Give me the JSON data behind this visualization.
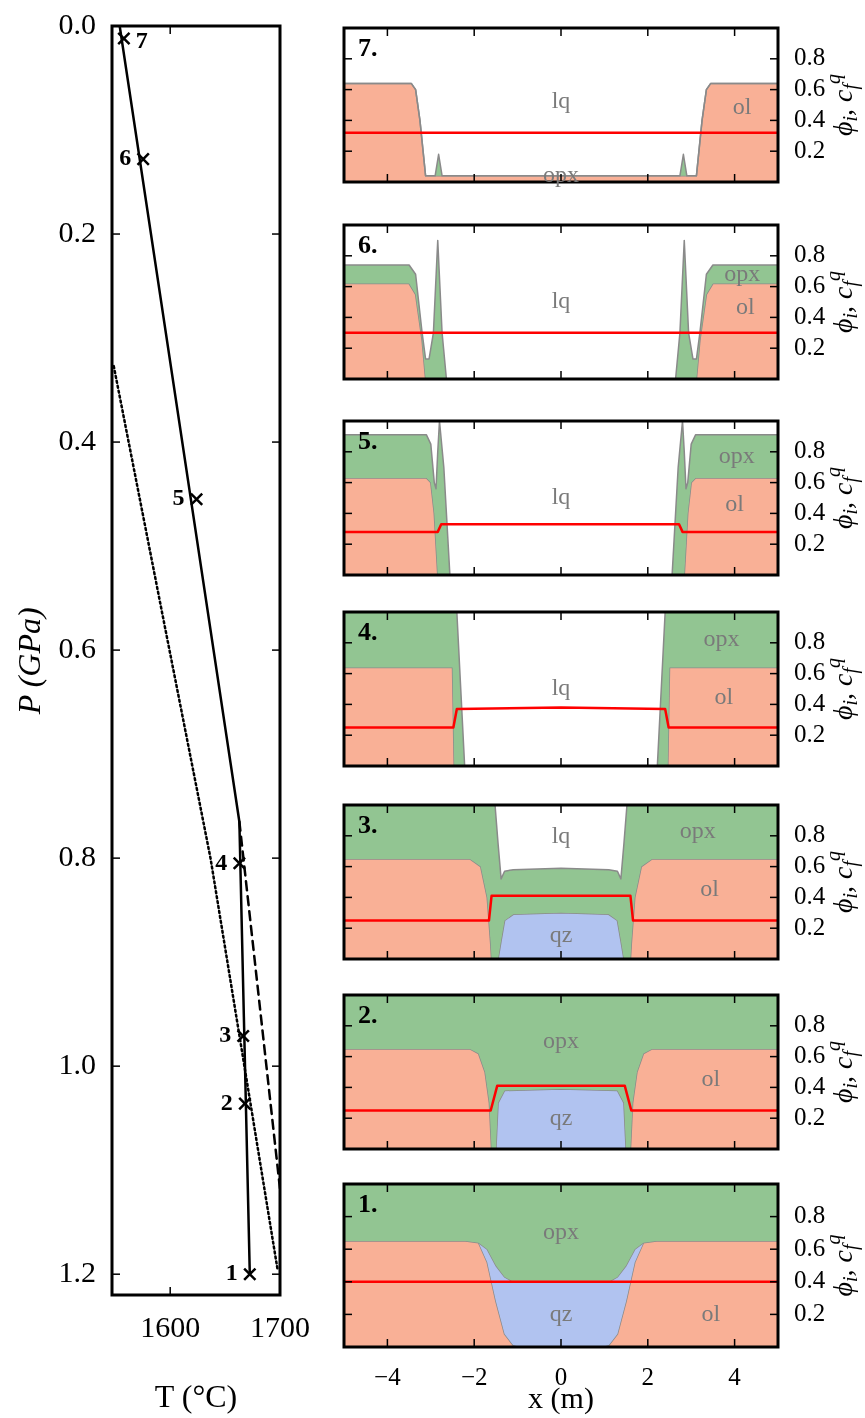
{
  "chart_data": [
    {
      "type": "line",
      "xlabel": "T (°C)",
      "ylabel": "P (GPa)",
      "xlim": [
        1547,
        1700
      ],
      "ylim": [
        1.22,
        0
      ],
      "xticks": [
        1600,
        1700
      ],
      "yticks": [
        {
          "value": 0,
          "label": "0.0"
        },
        0.2,
        0.4,
        0.6,
        0.8,
        {
          "value": 1,
          "label": "1.0"
        },
        1.2
      ],
      "series": [
        {
          "color": "#000000",
          "line_style": "solid",
          "x": [
            1554,
            1663,
            1672.5
          ],
          "values": [
            0,
            0.765,
            1.2
          ]
        },
        {
          "color": "#000000",
          "line_style": "dashed",
          "x": [
            1663,
            1700
          ],
          "values": [
            0.765,
            1.118
          ]
        },
        {
          "color": "#000000",
          "line_style": "dotted",
          "x": [
            1548.6,
            1593,
            1636.7,
            1697.7
          ],
          "values": [
            0.327,
            0.566,
            0.8,
            1.195
          ]
        },
        {
          "type": "scatter",
          "color": "#000000",
          "marker": "cross",
          "x": [
            1672.5,
            1668,
            1666.5,
            1663,
            1624,
            1575.4,
            1557.8
          ],
          "values": [
            1.2,
            1.036,
            0.971,
            0.805,
            0.455,
            0.128,
            0.012
          ]
        }
      ],
      "annotations": [
        {
          "text": "1",
          "x": 1672.5,
          "y": 1.2
        },
        {
          "text": "2",
          "x": 1668,
          "y": 1.036
        },
        {
          "text": "3",
          "x": 1666.5,
          "y": 0.971
        },
        {
          "text": "4",
          "x": 1663,
          "y": 0.805
        },
        {
          "text": "5",
          "x": 1624,
          "y": 0.455
        },
        {
          "text": "6",
          "x": 1575.4,
          "y": 0.128
        },
        {
          "text": "7",
          "x": 1557.8,
          "y": 0.012
        }
      ]
    },
    {
      "type": "area",
      "title": "7.",
      "ylabel": "ϕ$_{i}$, c$_{f}$$^{q}$",
      "xlim": [
        -5,
        5
      ],
      "ylim": [
        0,
        1
      ],
      "xticks": [
        -4,
        -2,
        0,
        2,
        4
      ],
      "yticks": [
        0.2,
        0.4,
        0.6,
        0.8
      ],
      "tick_labels": "y",
      "stacked": true,
      "x": [
        -5,
        -3.45,
        -3.35,
        -3.25,
        -3.12,
        -2.9,
        -2.82,
        -2.74,
        2.74,
        2.82,
        2.9,
        3.12,
        3.25,
        3.35,
        3.45,
        5
      ],
      "series": [
        {
          "name": "ol",
          "color": "#f9b096",
          "values": [
            0.64,
            0.64,
            0.6,
            0.4,
            0.04,
            0.04,
            0.04,
            0.04,
            0.04,
            0.04,
            0.04,
            0.04,
            0.4,
            0.6,
            0.64,
            0.64
          ]
        },
        {
          "name": "opx",
          "color": "#92c592",
          "values": [
            0,
            0,
            0,
            0,
            0,
            0,
            0.14,
            0,
            0,
            0.14,
            0,
            0,
            0,
            0,
            0,
            0
          ]
        },
        {
          "type": "line",
          "color": "#ff0000",
          "x": [
            -5,
            5
          ],
          "values": [
            0.32,
            0.32
          ]
        }
      ],
      "annotations": [
        "lq"
      ]
    },
    {
      "type": "area",
      "title": "6.",
      "ylabel": "ϕ$_{i}$, c$_{f}$$^{q}$",
      "xlim": [
        -5,
        5
      ],
      "ylim": [
        0,
        1
      ],
      "xticks": [
        -4,
        -2,
        0,
        2,
        4
      ],
      "yticks": [
        0.2,
        0.4,
        0.6,
        0.8
      ],
      "tick_labels": "y",
      "stacked": true,
      "x": [
        -5,
        -3.5,
        -3.35,
        -3.2,
        -3.12,
        -3.04,
        -2.94,
        -2.84,
        -2.74,
        -2.64,
        2.64,
        2.74,
        2.84,
        2.94,
        3.04,
        3.12,
        3.2,
        3.35,
        3.5,
        5
      ],
      "series": [
        {
          "name": "ol",
          "color": "#f9b096",
          "values": [
            0.62,
            0.62,
            0.55,
            0.25,
            0,
            0,
            0,
            0,
            0,
            0,
            0,
            0,
            0,
            0,
            0,
            0,
            0.25,
            0.55,
            0.62,
            0.62
          ]
        },
        {
          "name": "opx",
          "color": "#92c592",
          "values": [
            0.12,
            0.12,
            0.13,
            0.05,
            0.13,
            0.13,
            0.3,
            0.9,
            0.3,
            0,
            0,
            0.3,
            0.9,
            0.3,
            0.13,
            0.13,
            0.05,
            0.13,
            0.12,
            0.12
          ]
        },
        {
          "type": "line",
          "color": "#ff0000",
          "x": [
            -5,
            5
          ],
          "values": [
            0.3,
            0.3
          ]
        }
      ],
      "annotations": [
        "lq"
      ]
    },
    {
      "type": "area",
      "title": "5.",
      "ylabel": "ϕ$_{i}$, c$_{f}$$^{q}$",
      "xlim": [
        -5,
        5
      ],
      "ylim": [
        0,
        1
      ],
      "xticks": [
        -4,
        -2,
        0,
        2,
        4
      ],
      "yticks": [
        0.2,
        0.4,
        0.6,
        0.8
      ],
      "tick_labels": "y",
      "stacked": true,
      "x": [
        -5,
        -3.1,
        -3,
        -2.92,
        -2.88,
        -2.84,
        -2.8,
        -2.7,
        -2.56,
        2.56,
        2.7,
        2.8,
        2.84,
        2.88,
        2.92,
        3,
        3.1,
        5
      ],
      "series": [
        {
          "name": "ol",
          "color": "#f9b096",
          "values": [
            0.63,
            0.63,
            0.6,
            0.4,
            0.2,
            0,
            0,
            0,
            0,
            0,
            0,
            0,
            0,
            0.2,
            0.4,
            0.6,
            0.63,
            0.63
          ]
        },
        {
          "name": "opx",
          "color": "#92c592",
          "values": [
            0.28,
            0.28,
            0.25,
            0.2,
            0.36,
            0.8,
            1,
            0.7,
            0,
            0,
            0.7,
            1,
            0.8,
            0.36,
            0.2,
            0.25,
            0.28,
            0.28
          ]
        },
        {
          "type": "line",
          "color": "#ff0000",
          "x": [
            -5,
            -2.84,
            -2.76,
            2.72,
            2.8,
            5
          ],
          "values": [
            0.28,
            0.28,
            0.33,
            0.33,
            0.28,
            0.28
          ]
        }
      ],
      "annotations": [
        "lq"
      ]
    },
    {
      "type": "area",
      "title": "4.",
      "ylabel": "ϕ$_{i}$, c$_{f}$$^{q}$",
      "xlim": [
        -5,
        5
      ],
      "ylim": [
        0,
        1
      ],
      "xticks": [
        -4,
        -2,
        0,
        2,
        4
      ],
      "yticks": [
        0.2,
        0.4,
        0.6,
        0.8
      ],
      "tick_labels": "y",
      "stacked": true,
      "x": [
        -5,
        -2.5,
        -2.46,
        -2.4,
        -2.22,
        2.22,
        2.4,
        2.46,
        2.5,
        5
      ],
      "series": [
        {
          "name": "ol",
          "color": "#f9b096",
          "values": [
            0.64,
            0.64,
            0,
            0,
            0,
            0,
            0,
            0,
            0.64,
            0.64
          ]
        },
        {
          "name": "opx",
          "color": "#92c592",
          "values": [
            0.36,
            0.36,
            1,
            1,
            0,
            0,
            1,
            1,
            0.36,
            0.36
          ]
        },
        {
          "type": "line",
          "color": "#ff0000",
          "x": [
            -5,
            -2.48,
            -2.4,
            0,
            2.4,
            2.48,
            5
          ],
          "values": [
            0.25,
            0.25,
            0.37,
            0.38,
            0.37,
            0.25,
            0.25
          ]
        }
      ],
      "annotations": [
        "lq"
      ]
    },
    {
      "type": "area",
      "title": "3.",
      "ylabel": "ϕ$_{i}$, c$_{f}$$^{q}$",
      "xlim": [
        -5,
        5
      ],
      "ylim": [
        0,
        1
      ],
      "xticks": [
        -4,
        -2,
        0,
        2,
        4
      ],
      "yticks": [
        0.2,
        0.4,
        0.6,
        0.8
      ],
      "tick_labels": "y",
      "stacked": true,
      "x": [
        -5,
        -2.1,
        -1.85,
        -1.7,
        -1.62,
        -1.6,
        -1.52,
        -1.45,
        -1.38,
        -1.3,
        -1.1,
        0,
        1.1,
        1.3,
        1.38,
        1.45,
        1.52,
        1.6,
        1.62,
        1.7,
        1.85,
        2.1,
        5
      ],
      "series": [
        {
          "name": "ol",
          "color": "#f9b096",
          "values": [
            0.65,
            0.65,
            0.6,
            0.4,
            0.1,
            0,
            0,
            0,
            0,
            0,
            0,
            0,
            0,
            0,
            0,
            0,
            0,
            0,
            0.1,
            0.4,
            0.6,
            0.65,
            0.65
          ]
        },
        {
          "name": "qz",
          "color": "#b1c3f0",
          "values": [
            null,
            null,
            null,
            null,
            null,
            null,
            null,
            0,
            0.12,
            0.25,
            0.29,
            0.3,
            0.29,
            0.25,
            0.12,
            0,
            null,
            null,
            null,
            null,
            null,
            null,
            null
          ]
        },
        {
          "name": "opx",
          "color": "#92c592",
          "values": [
            0.35,
            0.35,
            0.4,
            0.6,
            0.9,
            1,
            1,
            0.75,
            0.4,
            0.32,
            0.29,
            0.29,
            0.29,
            0.32,
            0.4,
            0.75,
            1,
            1,
            0.9,
            0.6,
            0.4,
            0.35,
            0.35
          ]
        },
        {
          "type": "line",
          "color": "#ff0000",
          "x": [
            -5,
            -1.66,
            -1.6,
            1.6,
            1.66,
            5
          ],
          "values": [
            0.25,
            0.25,
            0.41,
            0.41,
            0.25,
            0.25
          ]
        }
      ],
      "annotations": [
        "lq"
      ]
    },
    {
      "type": "area",
      "title": "2.",
      "ylabel": "ϕ$_{i}$, c$_{f}$$^{q}$",
      "xlim": [
        -5,
        5
      ],
      "ylim": [
        0,
        1
      ],
      "xticks": [
        -4,
        -2,
        0,
        2,
        4
      ],
      "yticks": [
        0.2,
        0.4,
        0.6,
        0.8
      ],
      "tick_labels": "y",
      "stacked": true,
      "x": [
        -5,
        -2.1,
        -1.9,
        -1.75,
        -1.65,
        -1.6,
        -1.5,
        -1.45,
        -1.3,
        0,
        1.3,
        1.45,
        1.5,
        1.6,
        1.65,
        1.75,
        1.9,
        2.1,
        5
      ],
      "series": [
        {
          "name": "ol",
          "color": "#f9b096",
          "values": [
            0.65,
            0.65,
            0.62,
            0.5,
            0.3,
            0,
            0,
            0,
            0,
            0,
            0,
            0,
            0,
            0,
            0.3,
            0.5,
            0.62,
            0.65,
            0.65
          ]
        },
        {
          "name": "qz",
          "color": "#b1c3f0",
          "values": [
            null,
            null,
            null,
            null,
            null,
            null,
            0,
            0.3,
            0.38,
            0.39,
            0.38,
            0.3,
            0,
            null,
            null,
            null,
            null,
            null,
            null
          ]
        },
        {
          "name": "opx",
          "color": "#92c592",
          "values": [
            0.35,
            0.35,
            0.38,
            0.5,
            0.7,
            1,
            1,
            0.7,
            0.62,
            0.61,
            0.62,
            0.7,
            1,
            1,
            0.7,
            0.5,
            0.38,
            0.35,
            0.35
          ]
        },
        {
          "type": "line",
          "color": "#ff0000",
          "x": [
            -5,
            -1.62,
            -1.47,
            1.47,
            1.62,
            5
          ],
          "values": [
            0.25,
            0.25,
            0.41,
            0.41,
            0.25,
            0.25
          ]
        }
      ]
    },
    {
      "type": "area",
      "title": "1.",
      "xlabel": "x (m)",
      "ylabel": "ϕ$_{i}$, c$_{f}$$^{q}$",
      "xlim": [
        -5,
        5
      ],
      "ylim": [
        0,
        1
      ],
      "xticks": [
        {
          "value": -4,
          "label": "−4"
        },
        {
          "value": -2,
          "label": "−2"
        },
        0,
        2,
        4
      ],
      "yticks": [
        0.2,
        0.4,
        0.6,
        0.8
      ],
      "stacked": true,
      "x": [
        -5,
        -2.2,
        -1.9,
        -1.7,
        -1.5,
        -1.3,
        -1.1,
        -0.9,
        0,
        0.9,
        1.1,
        1.3,
        1.5,
        1.7,
        1.9,
        2.2,
        5
      ],
      "series": [
        {
          "name": "ol",
          "color": "#f9b096",
          "values": [
            0.65,
            0.65,
            0.64,
            0.52,
            0.28,
            0.08,
            0.01,
            0,
            0,
            0,
            0.01,
            0.08,
            0.28,
            0.52,
            0.64,
            0.65,
            0.65
          ]
        },
        {
          "name": "qz",
          "color": "#b1c3f0",
          "values": [
            null,
            null,
            0,
            0.08,
            0.22,
            0.35,
            0.39,
            0.4,
            0.4,
            0.4,
            0.39,
            0.35,
            0.22,
            0.08,
            0,
            null,
            null
          ]
        },
        {
          "name": "opx",
          "color": "#92c592",
          "values": [
            0.35,
            0.35,
            0.36,
            0.4,
            0.5,
            0.57,
            0.6,
            0.6,
            0.6,
            0.6,
            0.6,
            0.57,
            0.5,
            0.4,
            0.36,
            0.35,
            0.35
          ]
        },
        {
          "type": "line",
          "color": "#ff0000",
          "x": [
            -5,
            5
          ],
          "values": [
            0.4,
            0.4
          ]
        }
      ]
    }
  ]
}
